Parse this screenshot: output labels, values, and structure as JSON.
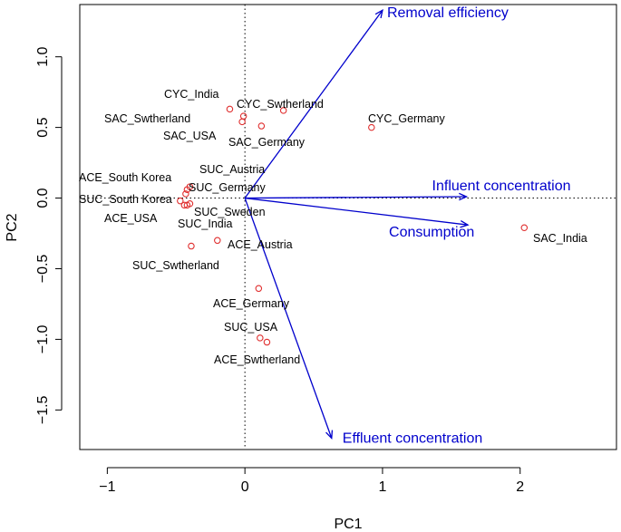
{
  "chart_data": {
    "type": "scatter",
    "subtype": "pca-biplot",
    "xlabel": "PC1",
    "ylabel": "PC2",
    "xlim": [
      -1.2,
      2.7
    ],
    "ylim": [
      -1.78,
      1.37
    ],
    "xticks": [
      -1,
      0,
      1,
      2
    ],
    "xtick_labels": [
      "−1",
      "0",
      "1",
      "2"
    ],
    "yticks": [
      1.0,
      0.5,
      0.0,
      -0.5,
      -1.0,
      -1.5
    ],
    "ytick_labels": [
      "1.0",
      "0.5",
      "0.0",
      "−0.5",
      "−1.0",
      "−1.5"
    ],
    "reference_lines": {
      "x": 0,
      "y": 0,
      "style": "dotted"
    },
    "point_color": "#e03030",
    "vector_color": "#0000cc",
    "points": [
      {
        "label": "CYC_India",
        "x": -0.11,
        "y": 0.63
      },
      {
        "label": "CYC_Swtherland",
        "x": 0.28,
        "y": 0.62
      },
      {
        "label": "SAC_Swtherland",
        "x": -0.01,
        "y": 0.58
      },
      {
        "label": "SAC_USA",
        "x": -0.02,
        "y": 0.54
      },
      {
        "label": "SAC_Germany",
        "x": 0.12,
        "y": 0.51
      },
      {
        "label": "CYC_Germany",
        "x": 0.92,
        "y": 0.5
      },
      {
        "label": "SUC_Austria",
        "x": -0.4,
        "y": 0.08
      },
      {
        "label": "ACE_South Korea",
        "x": -0.42,
        "y": 0.06
      },
      {
        "label": "SUC_Germany",
        "x": -0.43,
        "y": 0.03
      },
      {
        "label": "SUC_South Korea",
        "x": -0.47,
        "y": -0.02
      },
      {
        "label": "SUC_Sweden",
        "x": -0.4,
        "y": -0.04
      },
      {
        "label": "ACE_USA",
        "x": -0.44,
        "y": -0.05
      },
      {
        "label": "SUC_India",
        "x": -0.42,
        "y": -0.05
      },
      {
        "label": "SAC_India",
        "x": 2.03,
        "y": -0.21
      },
      {
        "label": "ACE_Austria",
        "x": -0.2,
        "y": -0.3
      },
      {
        "label": "SUC_Swtherland",
        "x": -0.39,
        "y": -0.34
      },
      {
        "label": "ACE_Germany",
        "x": 0.1,
        "y": -0.64
      },
      {
        "label": "SUC_USA",
        "x": 0.11,
        "y": -0.99
      },
      {
        "label": "ACE_Swtherland",
        "x": 0.16,
        "y": -1.02
      }
    ],
    "vectors": [
      {
        "label": "Removal efficiency",
        "x": 1.0,
        "y": 1.33
      },
      {
        "label": "Influent concentration",
        "x": 1.61,
        "y": 0.01
      },
      {
        "label": "Consumption",
        "x": 1.62,
        "y": -0.19
      },
      {
        "label": "Effluent concentration",
        "x": 0.63,
        "y": -1.7
      }
    ]
  }
}
